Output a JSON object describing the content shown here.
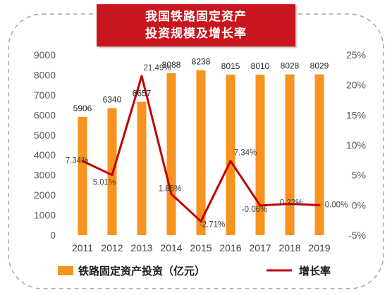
{
  "title": {
    "line1": "我国铁路固定资产",
    "line2": "投资规模及增长率"
  },
  "chart_data": {
    "type": "bar+line",
    "categories": [
      "2011",
      "2012",
      "2013",
      "2014",
      "2015",
      "2016",
      "2017",
      "2018",
      "2019"
    ],
    "series": [
      {
        "name": "铁路固定资产投资（亿元）",
        "type": "bar",
        "axis": "left",
        "color": "#f7931e",
        "values": [
          5906,
          6340,
          6657,
          8088,
          8238,
          8015,
          8010,
          8028,
          8029
        ],
        "labels": [
          "5906",
          "6340",
          "6657",
          "8088",
          "8238",
          "8015",
          "8010",
          "8028",
          "8029"
        ]
      },
      {
        "name": "增长率",
        "type": "line",
        "axis": "right",
        "color": "#c00000",
        "values": [
          7.34,
          5.01,
          21.49,
          1.85,
          -2.71,
          7.34,
          -0.06,
          0.22,
          0.0
        ],
        "labels": [
          "7.34%",
          "5.01%",
          "21.49%",
          "1.85%",
          "-2.71%",
          "7.34%",
          "-0.06%",
          "0.22%",
          "0.00%"
        ]
      }
    ],
    "y_left": {
      "min": 0,
      "max": 9000,
      "step": 1000,
      "ticks": [
        "0",
        "1000",
        "2000",
        "3000",
        "4000",
        "5000",
        "6000",
        "7000",
        "8000",
        "9000"
      ]
    },
    "y_right": {
      "min": -5,
      "max": 25,
      "step": 5,
      "ticks": [
        "-5%",
        "0%",
        "5%",
        "10%",
        "15%",
        "20%",
        "25%"
      ]
    },
    "grid": false,
    "legend": "bottom"
  }
}
